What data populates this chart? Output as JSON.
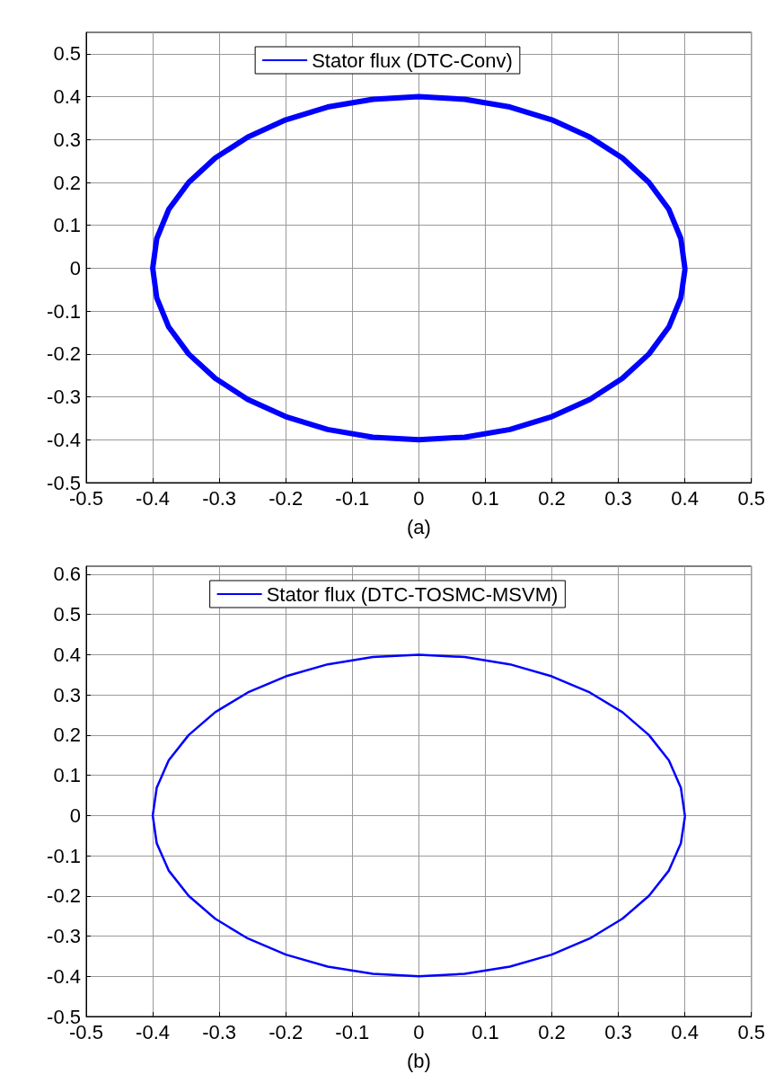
{
  "chart_data": [
    {
      "type": "line",
      "xlabel": "(a)",
      "xlim": [
        -0.5,
        0.5
      ],
      "ylim": [
        -0.5,
        0.55
      ],
      "xticks": [
        -0.5,
        -0.4,
        -0.3,
        -0.2,
        -0.1,
        0,
        0.1,
        0.2,
        0.3,
        0.4,
        0.5
      ],
      "yticks": [
        -0.5,
        -0.4,
        -0.3,
        -0.2,
        -0.1,
        0,
        0.1,
        0.2,
        0.3,
        0.4,
        0.5
      ],
      "grid": true,
      "legend": "top",
      "marker": "none",
      "line_style": "solid",
      "x": [
        0.4,
        0.394,
        0.376,
        0.346,
        0.306,
        0.257,
        0.2,
        0.137,
        0.069,
        0,
        -0.069,
        -0.137,
        -0.2,
        -0.257,
        -0.306,
        -0.346,
        -0.376,
        -0.394,
        -0.4,
        -0.394,
        -0.376,
        -0.346,
        -0.306,
        -0.257,
        -0.2,
        -0.137,
        -0.069,
        0,
        0.069,
        0.137,
        0.2,
        0.257,
        0.306,
        0.346,
        0.376,
        0.394,
        0.4
      ],
      "series": [
        {
          "name": "Stator flux (DTC-Conv)",
          "color": "#0000ff",
          "values": [
            0,
            0.069,
            0.137,
            0.2,
            0.257,
            0.306,
            0.346,
            0.376,
            0.394,
            0.4,
            0.394,
            0.376,
            0.346,
            0.306,
            0.257,
            0.2,
            0.137,
            0.069,
            0,
            -0.069,
            -0.137,
            -0.2,
            -0.257,
            -0.306,
            -0.346,
            -0.376,
            -0.394,
            -0.4,
            -0.394,
            -0.376,
            -0.346,
            -0.306,
            -0.257,
            -0.2,
            -0.137,
            -0.069,
            -0.004
          ]
        }
      ]
    },
    {
      "type": "line",
      "xlabel": "(b)",
      "xlim": [
        -0.5,
        0.5
      ],
      "ylim": [
        -0.5,
        0.62
      ],
      "xticks": [
        -0.5,
        -0.4,
        -0.3,
        -0.2,
        -0.1,
        0,
        0.1,
        0.2,
        0.3,
        0.4,
        0.5
      ],
      "yticks": [
        -0.5,
        -0.4,
        -0.3,
        -0.2,
        -0.1,
        0,
        0.1,
        0.2,
        0.3,
        0.4,
        0.5,
        0.6
      ],
      "grid": true,
      "legend": "top",
      "marker": "none",
      "line_style": "solid",
      "x": [
        0.4,
        0.394,
        0.376,
        0.346,
        0.306,
        0.257,
        0.2,
        0.137,
        0.069,
        0,
        -0.069,
        -0.137,
        -0.2,
        -0.257,
        -0.306,
        -0.346,
        -0.376,
        -0.394,
        -0.4,
        -0.394,
        -0.376,
        -0.346,
        -0.306,
        -0.257,
        -0.2,
        -0.137,
        -0.069,
        0,
        0.069,
        0.137,
        0.2,
        0.257,
        0.306,
        0.346,
        0.376,
        0.394,
        0.4
      ],
      "series": [
        {
          "name": "Stator flux (DTC-TOSMC-MSVM)",
          "color": "#0000ff",
          "values": [
            0,
            0.069,
            0.137,
            0.2,
            0.257,
            0.306,
            0.346,
            0.376,
            0.394,
            0.4,
            0.394,
            0.376,
            0.346,
            0.306,
            0.257,
            0.2,
            0.137,
            0.069,
            0,
            -0.069,
            -0.137,
            -0.2,
            -0.257,
            -0.306,
            -0.346,
            -0.376,
            -0.394,
            -0.4,
            -0.394,
            -0.376,
            -0.346,
            -0.306,
            -0.257,
            -0.2,
            -0.137,
            -0.069,
            -0.004
          ]
        }
      ]
    }
  ]
}
